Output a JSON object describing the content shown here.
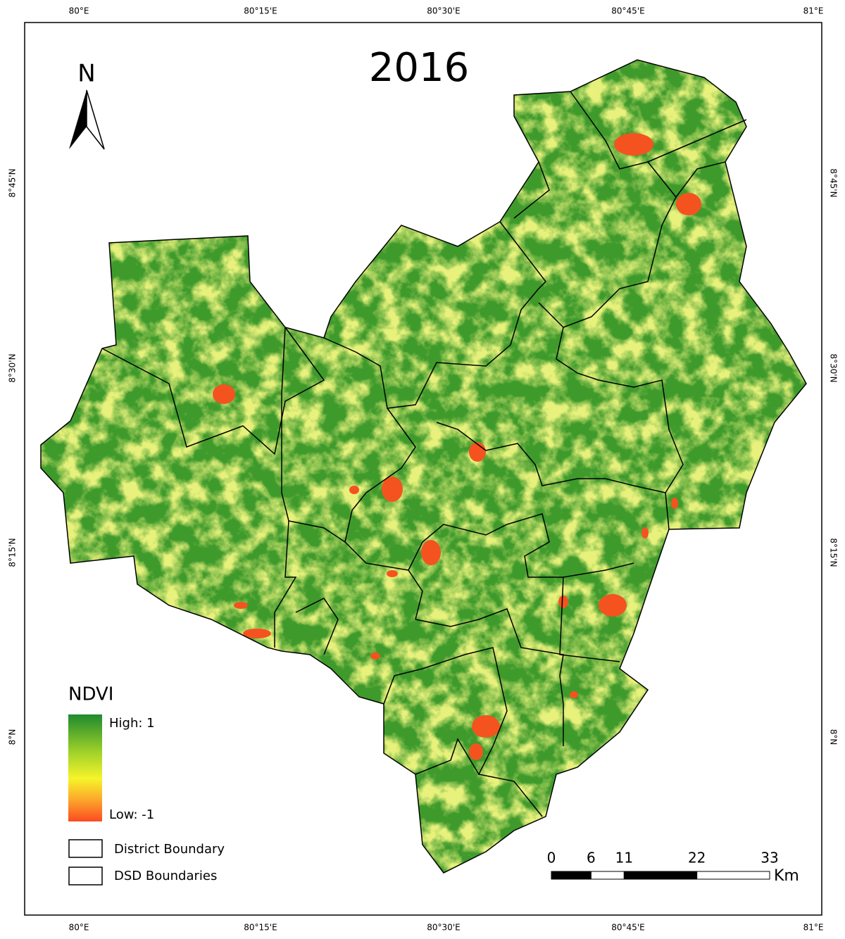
{
  "title": "2016",
  "north": "N",
  "graticule": {
    "longitudes": [
      "80°E",
      "80°15'E",
      "80°30'E",
      "80°45'E",
      "81°E"
    ],
    "latitudes": [
      "8°45'N",
      "8°30'N",
      "8°15'N",
      "8°N"
    ]
  },
  "legend": {
    "title": "NDVI",
    "high": "High: 1",
    "low": "Low: -1",
    "boundaries": [
      "District Boundary",
      "DSD Boundaries"
    ]
  },
  "scale_bar": {
    "ticks": [
      0,
      6,
      11,
      22,
      33
    ],
    "unit": "Km"
  }
}
